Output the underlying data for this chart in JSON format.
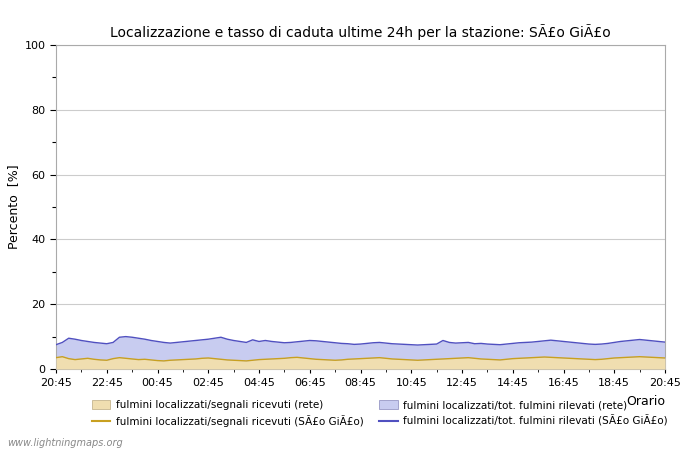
{
  "title": "Localizzazione e tasso di caduta ultime 24h per la stazione: SÃ£o GiÃ£o",
  "ylabel": "Percento  [%]",
  "xlabel": "Orario",
  "ylim": [
    0,
    100
  ],
  "yticks_major": [
    0,
    20,
    40,
    60,
    80,
    100
  ],
  "yticks_minor": [
    10,
    30,
    50,
    70,
    90
  ],
  "x_labels": [
    "20:45",
    "22:45",
    "00:45",
    "02:45",
    "04:45",
    "06:45",
    "08:45",
    "10:45",
    "12:45",
    "14:45",
    "16:45",
    "18:45",
    "20:45"
  ],
  "n_points": 97,
  "fill_rete_color": "#f0deb0",
  "fill_tot_color": "#c8ccf0",
  "line_rete_color": "#c8a020",
  "line_tot_color": "#5050c0",
  "line_width": 1.0,
  "background_color": "#ffffff",
  "grid_color": "#cccccc",
  "watermark": "www.lightningmaps.org",
  "legend": [
    {
      "label": "fulmini localizzati/segnali ricevuti (rete)",
      "color": "#f0deb0",
      "type": "fill"
    },
    {
      "label": "fulmini localizzati/segnali ricevuti (SÃ£o GiÃ£o)",
      "color": "#c8a020",
      "type": "line"
    },
    {
      "label": "fulmini localizzati/tot. fulmini rilevati (rete)",
      "color": "#c8ccf0",
      "type": "fill"
    },
    {
      "label": "fulmini localizzati/tot. fulmini rilevati (SÃ£o GiÃ£o)",
      "color": "#5050c0",
      "type": "line"
    }
  ],
  "fill_rete_values": [
    3.5,
    3.8,
    3.2,
    2.9,
    3.1,
    3.3,
    3.0,
    2.8,
    2.7,
    3.2,
    3.5,
    3.3,
    3.1,
    2.9,
    3.0,
    2.8,
    2.6,
    2.5,
    2.7,
    2.8,
    2.9,
    3.0,
    3.1,
    3.3,
    3.4,
    3.2,
    3.0,
    2.8,
    2.7,
    2.6,
    2.5,
    2.7,
    2.9,
    3.0,
    3.1,
    3.2,
    3.3,
    3.5,
    3.6,
    3.4,
    3.2,
    3.0,
    2.9,
    2.8,
    2.7,
    2.8,
    3.0,
    3.1,
    3.2,
    3.3,
    3.4,
    3.5,
    3.3,
    3.1,
    3.0,
    2.9,
    2.8,
    2.7,
    2.8,
    2.9,
    3.0,
    3.1,
    3.2,
    3.3,
    3.4,
    3.5,
    3.3,
    3.1,
    3.0,
    2.9,
    2.8,
    3.0,
    3.2,
    3.3,
    3.4,
    3.5,
    3.6,
    3.7,
    3.6,
    3.5,
    3.4,
    3.3,
    3.2,
    3.1,
    3.0,
    2.9,
    3.0,
    3.2,
    3.4,
    3.5,
    3.6,
    3.7,
    3.8,
    3.7,
    3.6,
    3.5,
    3.4
  ],
  "fill_tot_values": [
    7.5,
    8.2,
    9.5,
    9.2,
    8.8,
    8.5,
    8.2,
    8.0,
    7.8,
    8.2,
    9.8,
    10.0,
    9.8,
    9.5,
    9.2,
    8.8,
    8.5,
    8.2,
    8.0,
    8.2,
    8.4,
    8.6,
    8.8,
    9.0,
    9.2,
    9.5,
    9.8,
    9.2,
    8.8,
    8.5,
    8.2,
    9.0,
    8.5,
    8.8,
    8.5,
    8.3,
    8.1,
    8.2,
    8.4,
    8.6,
    8.8,
    8.7,
    8.5,
    8.3,
    8.1,
    7.9,
    7.8,
    7.6,
    7.7,
    7.9,
    8.1,
    8.2,
    8.0,
    7.8,
    7.7,
    7.6,
    7.5,
    7.4,
    7.5,
    7.6,
    7.7,
    8.8,
    8.2,
    8.0,
    8.1,
    8.2,
    7.8,
    7.9,
    7.7,
    7.6,
    7.5,
    7.7,
    7.9,
    8.1,
    8.2,
    8.3,
    8.5,
    8.7,
    8.9,
    8.7,
    8.5,
    8.3,
    8.1,
    7.9,
    7.7,
    7.6,
    7.7,
    7.9,
    8.2,
    8.5,
    8.7,
    8.9,
    9.1,
    8.9,
    8.7,
    8.5,
    8.3
  ]
}
